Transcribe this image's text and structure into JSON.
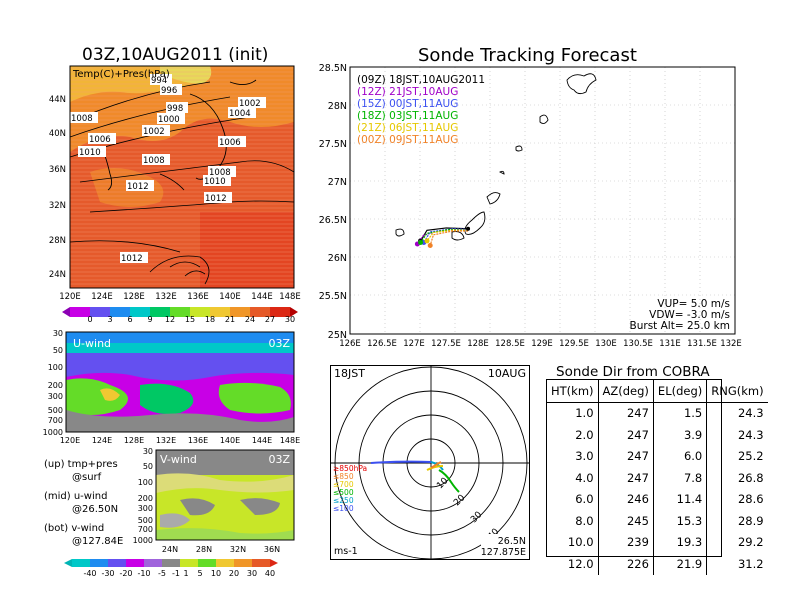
{
  "left_top": {
    "title": "03Z,10AUG2011 (init)",
    "overlay": "Temp(C)+Pres(hPa)",
    "lat_ticks": [
      "44N",
      "40N",
      "36N",
      "32N",
      "28N",
      "24N"
    ],
    "lon_ticks": [
      "120E",
      "124E",
      "128E",
      "132E",
      "136E",
      "140E",
      "144E",
      "148E"
    ],
    "isobar_labels": [
      "994",
      "996",
      "998",
      "1000",
      "1002",
      "1002",
      "1004",
      "1006",
      "1006",
      "1008",
      "1010",
      "1008",
      "1010",
      "1012",
      "1012",
      "1012",
      "1008"
    ],
    "colorbar_ticks": [
      "0",
      "3",
      "6",
      "9",
      "12",
      "15",
      "18",
      "21",
      "24",
      "27",
      "30"
    ]
  },
  "left_mid": {
    "label": "U-wind",
    "time": "03Z",
    "p_ticks": [
      "30",
      "50",
      "100",
      "200",
      "300",
      "500",
      "700",
      "1000"
    ],
    "lon_ticks": [
      "120E",
      "124E",
      "128E",
      "132E",
      "136E",
      "140E",
      "144E",
      "148E"
    ]
  },
  "left_bot": {
    "label": "V-wind",
    "time": "03Z",
    "p_ticks": [
      "30",
      "50",
      "100",
      "200",
      "300",
      "500",
      "700",
      "1000"
    ],
    "lat_ticks": [
      "24N",
      "28N",
      "32N",
      "36N"
    ],
    "notes": [
      "(up) tmp+pres",
      "@surf",
      "(mid) u-wind",
      "@26.50N",
      "(bot) v-wind",
      "@127.84E"
    ],
    "colorbar_ticks": [
      "-40",
      "-30",
      "-20",
      "-10",
      "-5",
      "-1",
      "1",
      "5",
      "10",
      "20",
      "30",
      "40"
    ]
  },
  "tracking": {
    "title": "Sonde Tracking Forecast",
    "lat_ticks": [
      "28.5N",
      "28N",
      "27.5N",
      "27N",
      "26.5N",
      "26N",
      "25.5N",
      "25N"
    ],
    "lon_ticks": [
      "126E",
      "126.5E",
      "127E",
      "127.5E",
      "128E",
      "128.5E",
      "129E",
      "129.5E",
      "130E",
      "130.5E",
      "131E",
      "131.5E",
      "132E"
    ],
    "legend": [
      {
        "text": "(09Z)  18JST,10AUG2011",
        "color": "#000000"
      },
      {
        "text": "(12Z)  21JST,10AUG",
        "color": "#a000c8"
      },
      {
        "text": "(15Z)  00JST,11AUG",
        "color": "#3c50f0"
      },
      {
        "text": "(18Z)  03JST,11AUG",
        "color": "#00b400"
      },
      {
        "text": "(21Z)  06JST,11AUG",
        "color": "#e6c800"
      },
      {
        "text": "(00Z)  09JST,11AUG",
        "color": "#f08228"
      }
    ],
    "params": [
      "VUP= 5.0 m/s",
      "VDW= -3.0 m/s",
      "Burst Alt= 25.0 km"
    ]
  },
  "hodo": {
    "time": "18JST",
    "date": "10AUG",
    "levels": [
      {
        "text": "≥850hPa",
        "color": "#e60000"
      },
      {
        "text": "≤850",
        "color": "#f08228"
      },
      {
        "text": "≤700",
        "color": "#e6c800"
      },
      {
        "text": "≤500",
        "color": "#00b400"
      },
      {
        "text": "≤250",
        "color": "#00a0c8"
      },
      {
        "text": "≤100",
        "color": "#3c50f0"
      }
    ],
    "ring_labels": [
      "10",
      "20",
      "30",
      "40"
    ],
    "unit": "ms-1",
    "loc_lat": "26.5N",
    "loc_lon": "127.875E"
  },
  "table": {
    "title": "Sonde Dir from COBRA",
    "headers": [
      "HT(km)",
      "AZ(deg)",
      "EL(deg)",
      "RNG(km)"
    ],
    "rows": [
      [
        "1.0",
        "247",
        "1.5",
        "24.3"
      ],
      [
        "2.0",
        "247",
        "3.9",
        "24.3"
      ],
      [
        "3.0",
        "247",
        "6.0",
        "25.2"
      ],
      [
        "4.0",
        "247",
        "7.8",
        "26.8"
      ],
      [
        "6.0",
        "246",
        "11.4",
        "28.6"
      ],
      [
        "8.0",
        "245",
        "15.3",
        "28.9"
      ],
      [
        "10.0",
        "239",
        "19.3",
        "29.2"
      ],
      [
        "12.0",
        "226",
        "21.9",
        "31.2"
      ]
    ]
  },
  "chart_data": [
    {
      "type": "heatmap",
      "title": "03Z,10AUG2011 (init)",
      "subtitle": "Temp(C)+Pres(hPa)",
      "x_range": [
        "120E",
        "148E"
      ],
      "y_range": [
        "22N",
        "47N"
      ],
      "colorbar": [
        0,
        3,
        6,
        9,
        12,
        15,
        18,
        21,
        24,
        27,
        30
      ],
      "isobars_hPa": [
        994,
        996,
        998,
        1000,
        1002,
        1004,
        1006,
        1008,
        1010,
        1012
      ]
    },
    {
      "type": "heatmap",
      "title": "U-wind",
      "x_range": [
        "120E",
        "148E"
      ],
      "y_ticks_hPa": [
        30,
        50,
        100,
        200,
        300,
        500,
        700,
        1000
      ]
    },
    {
      "type": "heatmap",
      "title": "V-wind",
      "x_range": [
        "22N",
        "38N"
      ],
      "y_ticks_hPa": [
        30,
        50,
        100,
        200,
        300,
        500,
        700,
        1000
      ],
      "colorbar": [
        -40,
        -30,
        -20,
        -10,
        -5,
        -1,
        1,
        5,
        10,
        20,
        30,
        40
      ]
    },
    {
      "type": "line",
      "title": "Sonde Tracking Forecast",
      "xlim": [
        126,
        132
      ],
      "ylim": [
        25,
        28.5
      ],
      "launch": [
        127.84,
        26.38
      ],
      "series": [
        {
          "name": "(09Z)",
          "color": "#000000",
          "x": [
            127.84,
            127.5,
            127.2,
            127.1
          ],
          "y": [
            26.38,
            26.39,
            26.36,
            26.22
          ]
        },
        {
          "name": "(12Z)",
          "color": "#a000c8",
          "x": [
            127.84,
            127.45,
            127.15,
            127.05
          ],
          "y": [
            26.37,
            26.36,
            26.3,
            26.18
          ]
        },
        {
          "name": "(15Z)",
          "color": "#3c50f0",
          "x": [
            127.84,
            127.6,
            127.25,
            127.15
          ],
          "y": [
            26.37,
            26.38,
            26.34,
            26.2
          ]
        },
        {
          "name": "(18Z)",
          "color": "#00b400",
          "x": [
            127.84,
            127.55,
            127.2,
            127.1
          ],
          "y": [
            26.36,
            26.37,
            26.32,
            26.2
          ]
        },
        {
          "name": "(21Z)",
          "color": "#e6c800",
          "x": [
            127.84,
            127.6,
            127.3,
            127.2
          ],
          "y": [
            26.36,
            26.36,
            26.33,
            26.22
          ]
        },
        {
          "name": "(00Z)",
          "color": "#f08228",
          "x": [
            127.84,
            127.6,
            127.3,
            127.25
          ],
          "y": [
            26.35,
            26.35,
            26.3,
            26.16
          ]
        }
      ],
      "vup_m_s": 5.0,
      "vdw_m_s": -3.0,
      "burst_alt_km": 25.0
    }
  ]
}
